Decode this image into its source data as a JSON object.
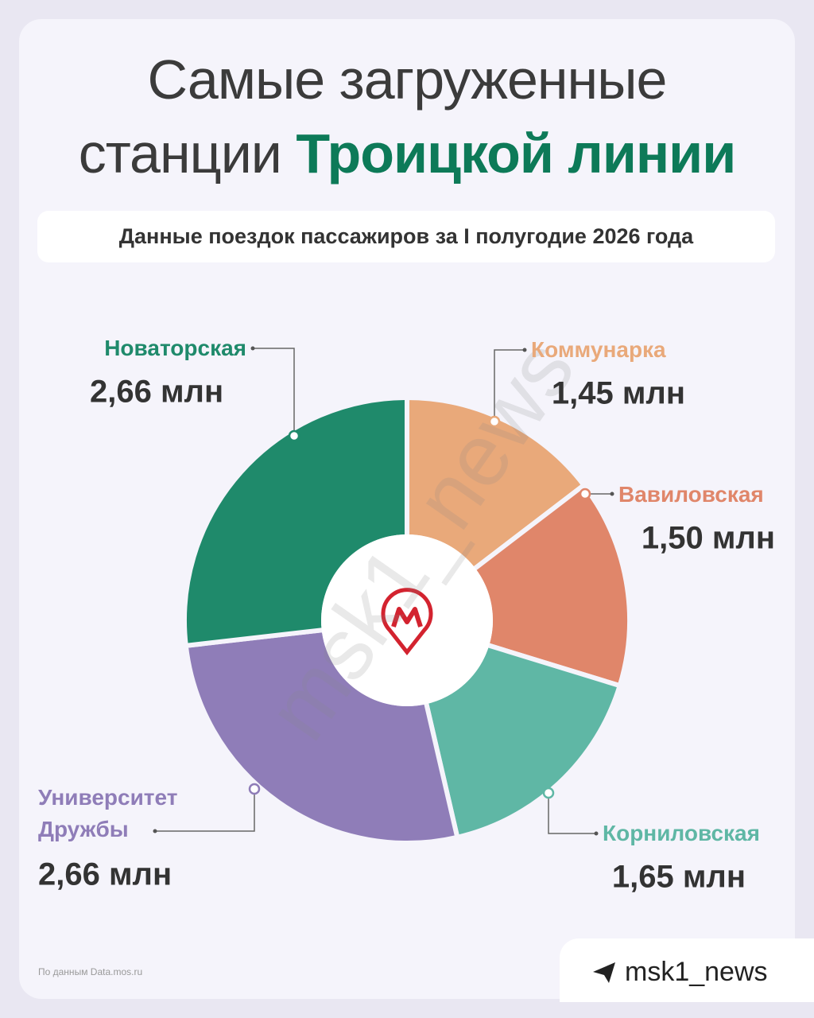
{
  "chart_data": {
    "type": "pie",
    "title_line1": "Самые загруженные",
    "title_line2": "станции",
    "title_highlight": "Троицкой линии",
    "subtitle": "Данные поездок пассажиров за I полугодие 2026 года",
    "categories": [
      "Коммунарка",
      "Вавиловская",
      "Корниловская",
      "Университет Дружбы",
      "Новаторская"
    ],
    "values": [
      1.45,
      1.5,
      1.65,
      2.66,
      2.66
    ],
    "value_labels": [
      "1,45 млн",
      "1,50 млн",
      "1,65 млн",
      "2,66 млн",
      "2,66 млн"
    ],
    "colors": [
      "#e9a97a",
      "#e0866a",
      "#5fb7a5",
      "#8f7db8",
      "#1f8a6b"
    ],
    "donut": true,
    "source": "По данным Data.mos.ru",
    "watermark": "msk1_news",
    "brand": "msk1_news"
  }
}
